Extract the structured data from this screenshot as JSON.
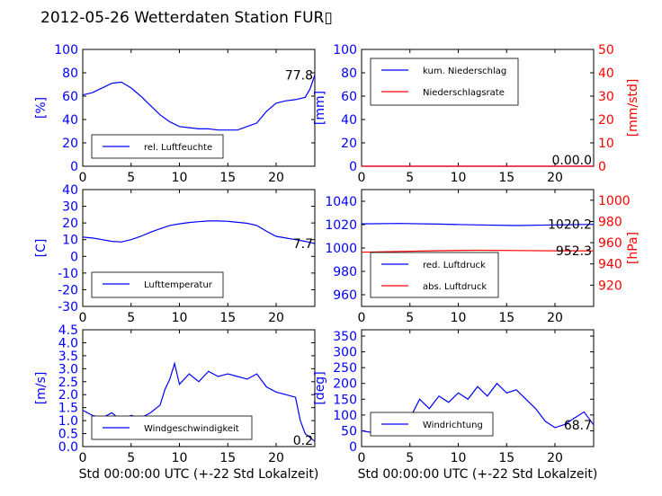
{
  "title": "2012-05-26 Wetterdaten Station FUR▯",
  "colors": {
    "left_axis": "#0000ff",
    "right_axis": "#ff0000",
    "series_blue": "#0000ff",
    "series_red": "#ff0000",
    "text": "#000000"
  },
  "chart_data": [
    {
      "id": "humidity",
      "type": "line",
      "ylabel": "[%]",
      "xlim": [
        0,
        24
      ],
      "ylim": [
        0,
        100
      ],
      "xticks": [
        0,
        5,
        10,
        15,
        20
      ],
      "yticks": [
        0,
        20,
        40,
        60,
        80,
        100
      ],
      "grid": false,
      "legend": {
        "placement": "lower-left",
        "entries": [
          "rel. Luftfeuchte"
        ]
      },
      "last_value_label": "77.8",
      "series": [
        {
          "name": "rel. Luftfeuchte",
          "color": "#0000ff",
          "x": [
            0,
            1,
            2,
            3,
            4,
            5,
            6,
            7,
            8,
            9,
            10,
            11,
            12,
            13,
            14,
            15,
            16,
            17,
            18,
            19,
            20,
            21,
            22,
            23,
            23.5,
            24
          ],
          "y": [
            61,
            63,
            67,
            71,
            72,
            67,
            60,
            52,
            44,
            38,
            34,
            33,
            32,
            32,
            31,
            31,
            31,
            34,
            37,
            47,
            54,
            56,
            57,
            59,
            66,
            78
          ]
        }
      ]
    },
    {
      "id": "precipitation",
      "type": "line",
      "ylabel": "[mm]",
      "ylabel_right": "[mm/std]",
      "xlim": [
        0,
        24
      ],
      "ylim": [
        0,
        100
      ],
      "ylim_right": [
        0,
        50
      ],
      "xticks": [
        0,
        5,
        10,
        15,
        20
      ],
      "yticks": [
        0,
        20,
        40,
        60,
        80,
        100
      ],
      "yticks_right": [
        0,
        10,
        20,
        30,
        40,
        50
      ],
      "grid": false,
      "legend": {
        "placement": "top-left",
        "entries": [
          "kum. Niederschlag",
          "Niederschlagsrate"
        ]
      },
      "last_value_label": "0.00.0",
      "series": [
        {
          "name": "kum. Niederschlag",
          "color": "#0000ff",
          "axis": "left",
          "x": [
            0,
            24
          ],
          "y": [
            0,
            0
          ]
        },
        {
          "name": "Niederschlagsrate",
          "color": "#ff0000",
          "axis": "right",
          "x": [
            0,
            24
          ],
          "y": [
            0,
            0
          ]
        }
      ]
    },
    {
      "id": "temperature",
      "type": "line",
      "ylabel": "[C]",
      "xlim": [
        0,
        24
      ],
      "ylim": [
        -30,
        40
      ],
      "xticks": [
        0,
        5,
        10,
        15,
        20
      ],
      "yticks": [
        -30,
        -20,
        -10,
        0,
        10,
        20,
        30,
        40
      ],
      "grid": false,
      "legend": {
        "placement": "lower-left",
        "entries": [
          "Lufttemperatur"
        ]
      },
      "last_value_label": "7.7",
      "series": [
        {
          "name": "Lufttemperatur",
          "color": "#0000ff",
          "x": [
            0,
            1,
            2,
            3,
            4,
            5,
            6,
            7,
            8,
            9,
            10,
            11,
            12,
            13,
            14,
            15,
            16,
            17,
            18,
            19,
            20,
            21,
            22,
            23,
            24
          ],
          "y": [
            11.5,
            11,
            10,
            9,
            8.6,
            10,
            12,
            14.5,
            16.5,
            18.5,
            19.5,
            20.3,
            20.8,
            21.2,
            21.2,
            21,
            20.4,
            19.8,
            18.5,
            15,
            12,
            11,
            10,
            9,
            7.7
          ]
        }
      ]
    },
    {
      "id": "pressure",
      "type": "line",
      "ylabel_right": "[hPa]",
      "xlim": [
        0,
        24
      ],
      "ylim": [
        950,
        1050
      ],
      "ylim_right": [
        900,
        1010
      ],
      "xticks": [
        0,
        5,
        10,
        15,
        20
      ],
      "yticks": [
        960,
        980,
        1000,
        1020,
        1040
      ],
      "yticks_right": [
        920,
        940,
        960,
        980,
        1000
      ],
      "grid": false,
      "legend": {
        "placement": "lower-left",
        "entries": [
          "red. Luftdruck",
          "abs. Luftdruck"
        ]
      },
      "last_value_labels": [
        "1020.2",
        "952.3"
      ],
      "series": [
        {
          "name": "red. Luftdruck",
          "color": "#0000ff",
          "axis": "left",
          "x": [
            0,
            4,
            8,
            12,
            16,
            20,
            24
          ],
          "y": [
            1020.7,
            1021,
            1020.5,
            1019.8,
            1019.2,
            1019.8,
            1020.2
          ]
        },
        {
          "name": "abs. Luftdruck",
          "color": "#ff0000",
          "axis": "right",
          "x": [
            0,
            4,
            8,
            12,
            16,
            20,
            24
          ],
          "y": [
            951,
            951.8,
            952.5,
            952.9,
            952.6,
            952.4,
            952.3
          ]
        }
      ]
    },
    {
      "id": "windspeed",
      "type": "line",
      "ylabel": "[m/s]",
      "xlabel": "Std 00:00:00 UTC (+-22 Std Lokalzeit)",
      "xlim": [
        0,
        24
      ],
      "ylim": [
        0,
        4.5
      ],
      "xticks": [
        0,
        5,
        10,
        15,
        20
      ],
      "yticks": [
        0.0,
        0.5,
        1.0,
        1.5,
        2.0,
        2.5,
        3.0,
        3.5,
        4.0,
        4.5
      ],
      "grid": false,
      "legend": {
        "placement": "lower-left",
        "entries": [
          "Windgeschwindigkeit"
        ]
      },
      "last_value_label": "0.2",
      "series": [
        {
          "name": "Windgeschwindigkeit",
          "color": "#0000ff",
          "x": [
            0,
            1,
            2,
            3,
            4,
            5,
            6,
            7,
            8,
            8.5,
            9,
            9.5,
            10,
            11,
            12,
            13,
            14,
            15,
            16,
            17,
            18,
            19,
            20,
            21,
            22,
            22.5,
            23,
            24
          ],
          "y": [
            1.4,
            1.2,
            1.1,
            1.3,
            1.0,
            1.2,
            1.1,
            1.3,
            1.6,
            2.2,
            2.6,
            3.2,
            2.4,
            2.8,
            2.5,
            2.9,
            2.7,
            2.8,
            2.7,
            2.6,
            2.8,
            2.3,
            2.1,
            2.0,
            1.9,
            1.0,
            0.5,
            0.2
          ]
        }
      ]
    },
    {
      "id": "winddirection",
      "type": "line",
      "ylabel": "[deg]",
      "xlabel": "Std 00:00:00 UTC (+-22 Std Lokalzeit)",
      "xlim": [
        0,
        24
      ],
      "ylim": [
        0,
        370
      ],
      "xticks": [
        0,
        5,
        10,
        15,
        20
      ],
      "yticks": [
        0,
        50,
        100,
        150,
        200,
        250,
        300,
        350
      ],
      "grid": false,
      "legend": {
        "placement": "lower-left",
        "entries": [
          "Windrichtung"
        ]
      },
      "last_value_label": "68.7",
      "series": [
        {
          "name": "Windrichtung",
          "color": "#0000ff",
          "x": [
            0,
            1,
            2,
            3,
            4,
            5,
            6,
            7,
            8,
            9,
            10,
            11,
            12,
            13,
            14,
            15,
            16,
            17,
            18,
            19,
            20,
            21,
            22,
            23,
            24
          ],
          "y": [
            50,
            45,
            60,
            55,
            70,
            90,
            150,
            120,
            160,
            140,
            170,
            150,
            190,
            160,
            200,
            170,
            180,
            150,
            120,
            80,
            60,
            70,
            90,
            110,
            69
          ]
        }
      ]
    }
  ]
}
